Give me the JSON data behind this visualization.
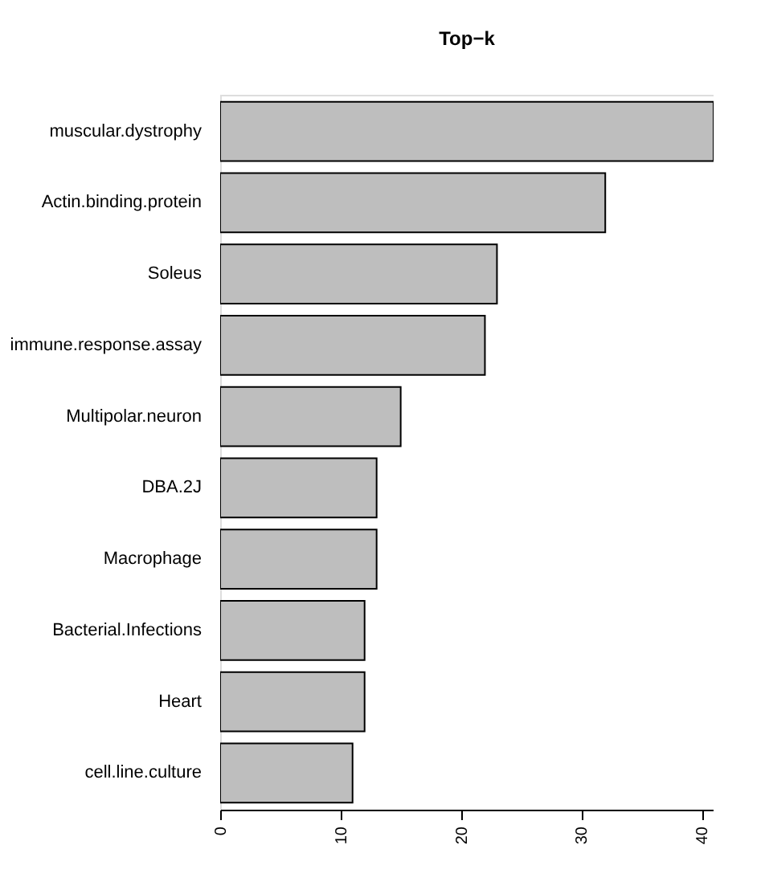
{
  "chart_data": {
    "type": "bar",
    "orientation": "horizontal",
    "title": "Top−k",
    "categories": [
      "muscular.dystrophy",
      "Actin.binding.protein",
      "Soleus",
      "immune.response.assay",
      "Multipolar.neuron",
      "DBA.2J",
      "Macrophage",
      "Bacterial.Infections",
      "Heart",
      "cell.line.culture"
    ],
    "values": [
      41,
      32,
      23,
      22,
      15,
      13,
      13,
      12,
      12,
      11
    ],
    "color": "#bebebe",
    "xlim": [
      0,
      41
    ],
    "xticks": [
      0,
      10,
      20,
      30,
      40
    ],
    "grid": false
  }
}
